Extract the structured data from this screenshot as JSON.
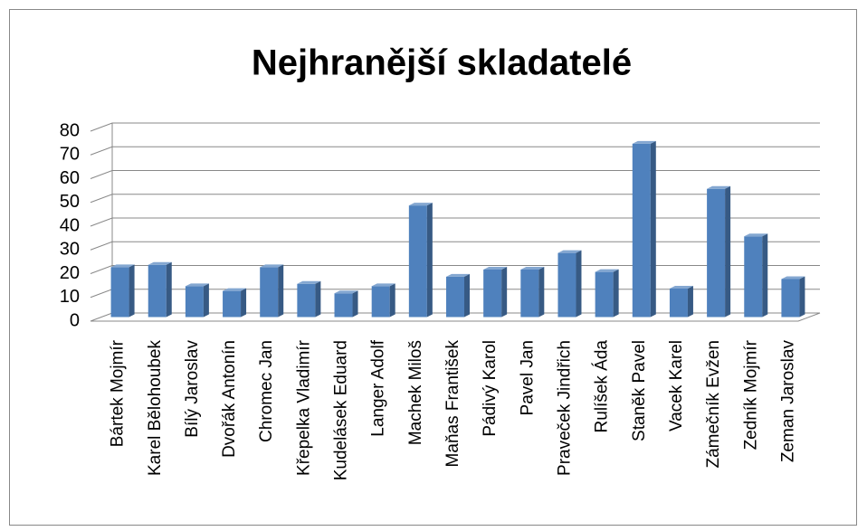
{
  "chart_data": {
    "type": "bar3d",
    "title": "Nejhranější skladatelé",
    "categories": [
      "Bártek Mojmír",
      "Karel Bělohoubek",
      "Bílý Jaroslav",
      "Dvořák Antonín",
      "Chromec Jan",
      "Křepelka Vladimír",
      "Kudelásek Eduard",
      "Langer Adolf",
      "Machek Miloš",
      "Maňas František",
      "Pádivý Karol",
      "Pavel Jan",
      "Praveček Jindřich",
      "Rulíšek Áda",
      "Staněk Pavel",
      "Vacek Karel",
      "Zámečník Evžen",
      "Zedník Mojmír",
      "Zeman Jaroslav"
    ],
    "values": [
      21,
      22,
      13,
      11,
      21,
      14,
      10,
      13,
      47,
      17,
      20,
      20,
      27,
      19,
      73,
      12,
      54,
      34,
      16
    ],
    "color": "#4f81bd",
    "ylim": [
      0,
      80
    ],
    "yticks": [
      0,
      10,
      20,
      30,
      40,
      50,
      60,
      70,
      80
    ],
    "grid": true
  }
}
